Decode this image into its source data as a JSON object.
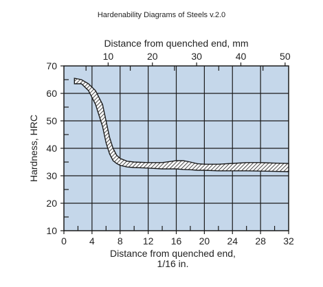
{
  "app": {
    "title": "Hardenability Diagrams of Steels v.2.0"
  },
  "colors": {
    "plot_background": "#c5d7ea",
    "grid": "#1a1a1a",
    "band_edge": "#1a1a1a",
    "band_hatch": "#1a1a1a",
    "text": "#222222"
  },
  "chart_data": {
    "type": "area",
    "title": "",
    "xlabel_lines": [
      "Distance from quenched end,",
      "1/16 in."
    ],
    "x2label": "Distance from quenched end, mm",
    "ylabel": "Hardness, HRC",
    "xlim": [
      0,
      32
    ],
    "x2lim": [
      0,
      50.8
    ],
    "ylim": [
      10,
      70
    ],
    "xticks": [
      0,
      4,
      8,
      12,
      16,
      20,
      24,
      28,
      32
    ],
    "x2ticks": [
      10,
      20,
      30,
      40,
      50
    ],
    "yticks": [
      10,
      20,
      30,
      40,
      50,
      60,
      70
    ],
    "grid": true,
    "hatch": "diagonal",
    "series": [
      {
        "role": "upper bound",
        "x": [
          1.5,
          2.5,
          3.5,
          4.5,
          5.5,
          6.0,
          6.5,
          7.0,
          7.5,
          8.0,
          9.0,
          10,
          12,
          14,
          16,
          17,
          18,
          19,
          20,
          22,
          24,
          26,
          28,
          30,
          32
        ],
        "y": [
          65.5,
          65,
          63.5,
          61,
          56,
          50,
          44,
          40,
          37.5,
          36.3,
          35.3,
          35,
          34.8,
          34.8,
          35.5,
          35.5,
          35,
          34.4,
          34.2,
          34.2,
          34.5,
          34.8,
          34.8,
          34.6,
          34.5
        ]
      },
      {
        "role": "lower bound",
        "x": [
          1.5,
          2.5,
          3.5,
          4.5,
          5.5,
          6.0,
          6.5,
          7.0,
          7.5,
          8.0,
          9.0,
          10,
          12,
          14,
          16,
          17,
          18,
          19,
          20,
          22,
          24,
          26,
          28,
          30,
          32
        ],
        "y": [
          63.5,
          63.5,
          61,
          56,
          48,
          42,
          38,
          35.5,
          34.5,
          33.8,
          33.2,
          33,
          32.8,
          32.5,
          32.5,
          32.3,
          32.2,
          32,
          32,
          31.8,
          31.8,
          31.8,
          31.7,
          31.6,
          31.5
        ]
      }
    ]
  }
}
